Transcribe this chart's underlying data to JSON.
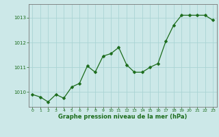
{
  "x": [
    0,
    1,
    2,
    3,
    4,
    5,
    6,
    7,
    8,
    9,
    10,
    11,
    12,
    13,
    14,
    15,
    16,
    17,
    18,
    19,
    20,
    21,
    22,
    23
  ],
  "y": [
    1009.9,
    1009.8,
    1009.6,
    1009.9,
    1009.75,
    1010.2,
    1010.35,
    1011.05,
    1010.8,
    1011.45,
    1011.55,
    1011.8,
    1011.1,
    1010.8,
    1010.8,
    1011.0,
    1011.15,
    1012.05,
    1012.7,
    1013.1,
    1013.1,
    1013.1,
    1013.1,
    1012.9
  ],
  "line_color": "#1a6b1a",
  "marker": "D",
  "marker_size": 2.5,
  "bg_color": "#cce8e8",
  "grid_color": "#aad4d4",
  "xlabel": "Graphe pression niveau de la mer (hPa)",
  "xlabel_color": "#1a6b1a",
  "tick_color": "#1a6b1a",
  "ylim": [
    1009.4,
    1013.55
  ],
  "yticks": [
    1010,
    1011,
    1012,
    1013
  ],
  "xlim": [
    -0.5,
    23.5
  ],
  "xticks": [
    0,
    1,
    2,
    3,
    4,
    5,
    6,
    7,
    8,
    9,
    10,
    11,
    12,
    13,
    14,
    15,
    16,
    17,
    18,
    19,
    20,
    21,
    22,
    23
  ]
}
